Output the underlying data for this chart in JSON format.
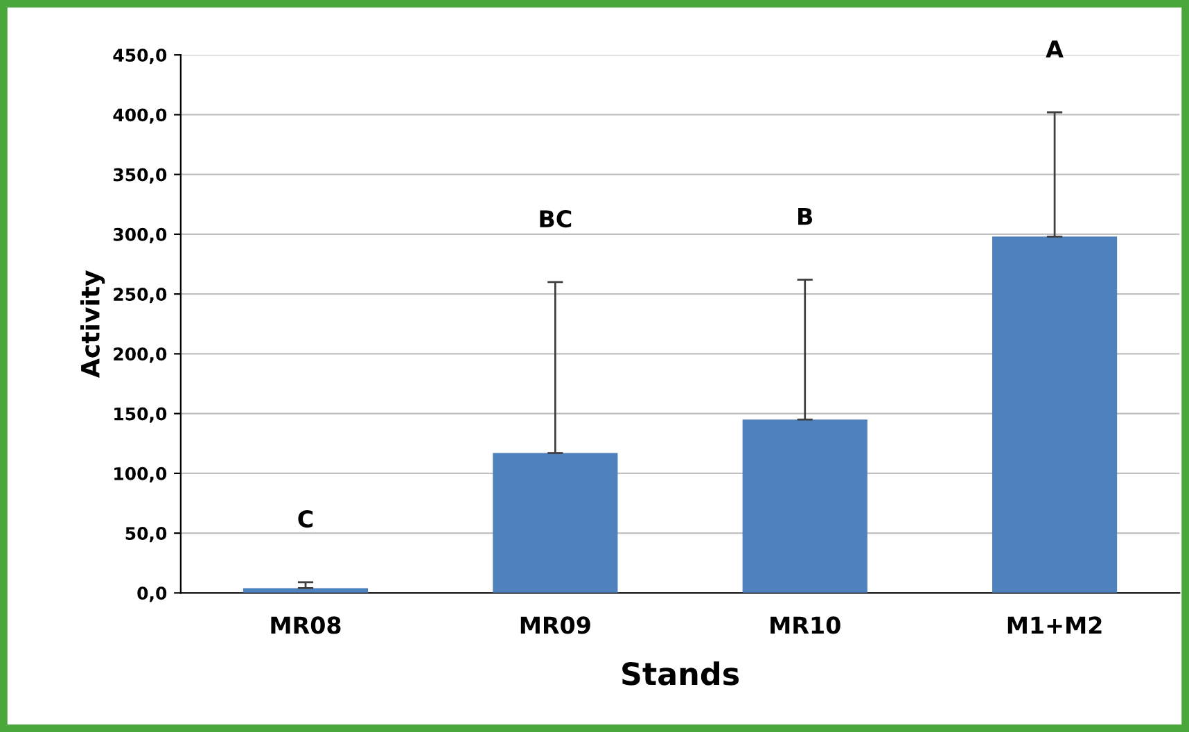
{
  "chart_data": {
    "type": "bar",
    "xlabel": "Stands",
    "ylabel": "Activity",
    "categories": [
      "MR08",
      "MR09",
      "MR10",
      "M1+M2"
    ],
    "values": [
      4,
      117,
      145,
      298
    ],
    "errors": [
      [
        4,
        9
      ],
      [
        117,
        260
      ],
      [
        145,
        262
      ],
      [
        298,
        402
      ]
    ],
    "color": "#4f81bd",
    "ylim": [
      0,
      450
    ],
    "yticks": [
      {
        "value": 0,
        "label": "0,0"
      },
      {
        "value": 50,
        "label": "50,0"
      },
      {
        "value": 100,
        "label": "100,0"
      },
      {
        "value": 150,
        "label": "150,0"
      },
      {
        "value": 200,
        "label": "200,0"
      },
      {
        "value": 250,
        "label": "250,0"
      },
      {
        "value": 300,
        "label": "300,0"
      },
      {
        "value": 350,
        "label": "350,0"
      },
      {
        "value": 400,
        "label": "400,0"
      },
      {
        "value": 450,
        "label": "450,0"
      }
    ],
    "grid": "y",
    "annotations": [
      "C",
      "BC",
      "B",
      "A"
    ]
  }
}
